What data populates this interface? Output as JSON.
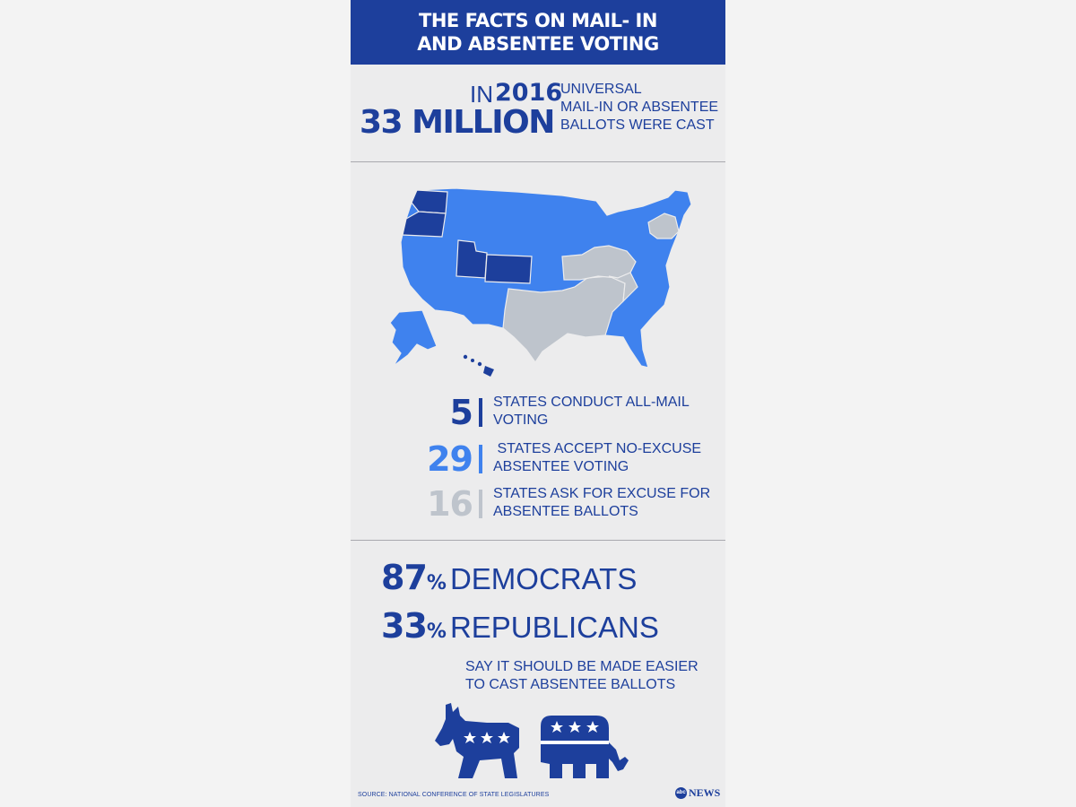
{
  "header": {
    "line1": "THE FACTS ON MAIL- IN",
    "line2": "AND ABSENTEE VOTING"
  },
  "stat2016": {
    "prefix": "IN",
    "year": "2016",
    "big_number": "33 MILLION",
    "desc_line1": "UNIVERSAL",
    "desc_line2": "MAIL-IN OR ABSENTEE",
    "desc_line3": "BALLOTS WERE CAST"
  },
  "colors": {
    "dark_blue": "#1d3f9c",
    "mid_blue": "#3f82ee",
    "gray": "#bec4cc",
    "background": "#ececed"
  },
  "legend": [
    {
      "number": "5",
      "text_line1": "STATES CONDUCT ALL-MAIL",
      "text_line2": "VOTING",
      "color": "#1d3f9c"
    },
    {
      "number": "29",
      "text_line1": " STATES ACCEPT NO-EXCUSE",
      "text_line2": "ABSENTEE VOTING",
      "color": "#3f82ee"
    },
    {
      "number": "16",
      "text_line1": "STATES ASK FOR EXCUSE FOR",
      "text_line2": "ABSENTEE BALLOTS",
      "color": "#bec4cc"
    }
  ],
  "poll": {
    "dem_number": "87",
    "dem_percent": "%",
    "dem_label": "DEMOCRATS",
    "rep_number": "33",
    "rep_percent": "%",
    "rep_label": "REPUBLICANS",
    "say_line1": "SAY IT SHOULD BE MADE EASIER",
    "say_line2": "TO CAST ABSENTEE BALLOTS"
  },
  "footer": {
    "source": "SOURCE: NATIONAL CONFERENCE OF STATE LEGISLATURES",
    "logo_mark": "abc",
    "logo_text": "NEWS"
  }
}
